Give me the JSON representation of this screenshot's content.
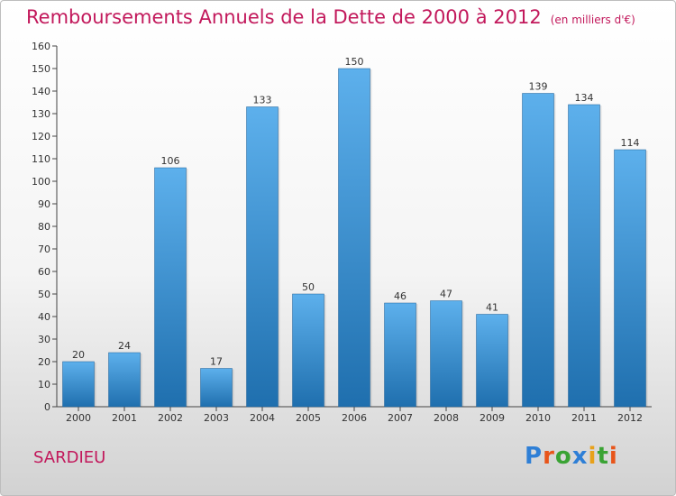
{
  "title": "Remboursements Annuels de la Dette de 2000 à 2012",
  "unit": "(en milliers d'€)",
  "city": "SARDIEU",
  "logo": {
    "text": "Proxiti",
    "letter_colors": [
      "#2e7fd6",
      "#e8551a",
      "#3aa334",
      "#2e7fd6",
      "#e8a11a",
      "#3aa334",
      "#e8551a"
    ]
  },
  "colors": {
    "title": "#c2185b",
    "bar_top": "#5db0ec",
    "bar_bottom": "#1f6fae",
    "axis": "#444444"
  },
  "chart_data": {
    "type": "bar",
    "categories": [
      "2000",
      "2001",
      "2002",
      "2003",
      "2004",
      "2005",
      "2006",
      "2007",
      "2008",
      "2009",
      "2010",
      "2011",
      "2012"
    ],
    "values": [
      20,
      24,
      106,
      17,
      133,
      50,
      150,
      46,
      47,
      41,
      139,
      134,
      114
    ],
    "title": "Remboursements Annuels de la Dette de 2000 à 2012",
    "xlabel": "",
    "ylabel": "",
    "ylim": [
      0,
      160
    ],
    "yticks": [
      0,
      10,
      20,
      30,
      40,
      50,
      60,
      70,
      80,
      90,
      100,
      110,
      120,
      130,
      140,
      150,
      160
    ],
    "grid": false,
    "legend": "none"
  }
}
